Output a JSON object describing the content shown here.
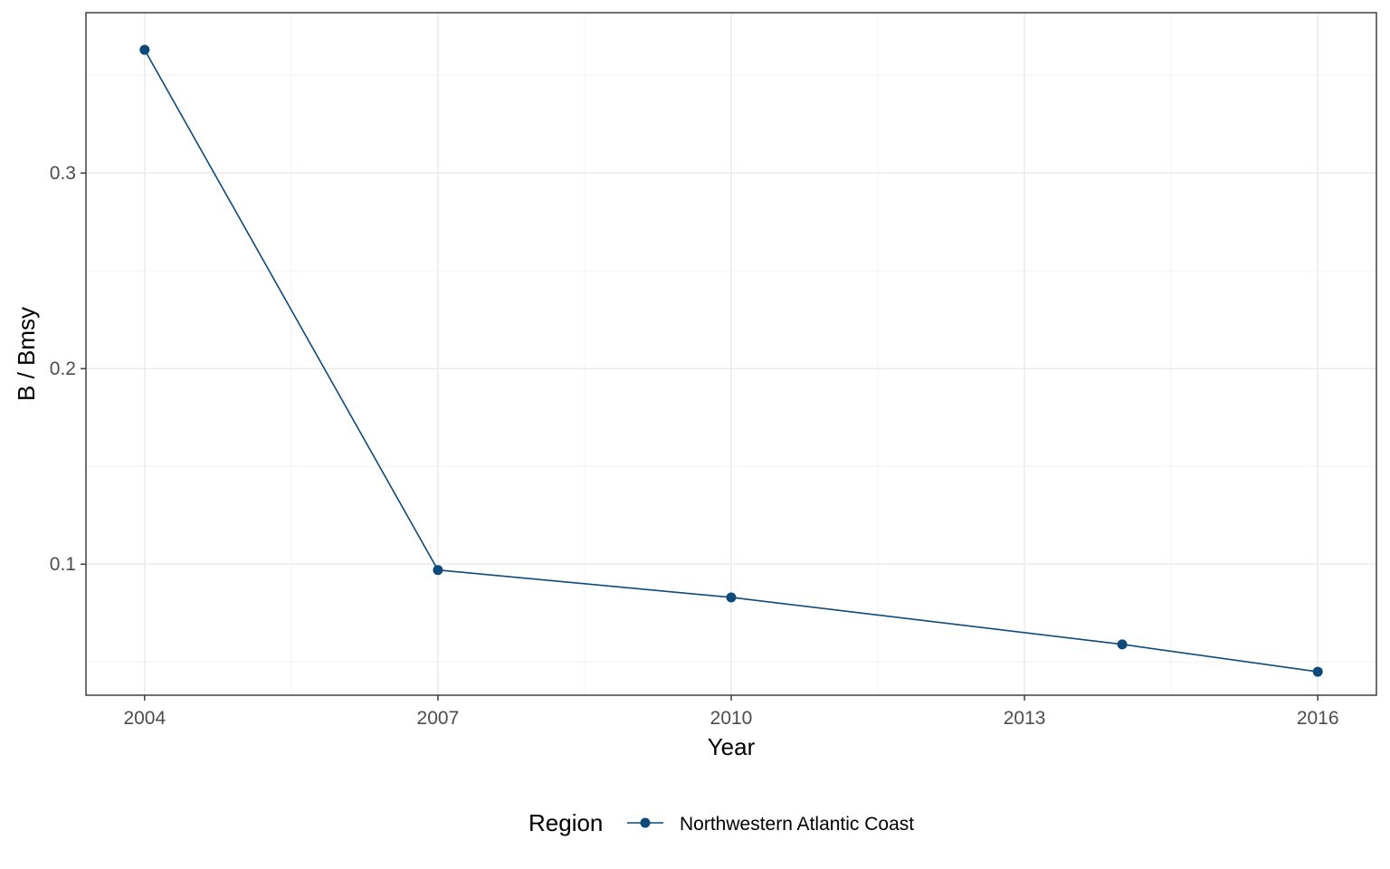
{
  "chart_data": {
    "type": "line",
    "title": "",
    "xlabel": "Year",
    "ylabel": "B / Bmsy",
    "xlim": [
      2003.4,
      2016.6
    ],
    "ylim": [
      0.033,
      0.382
    ],
    "x_ticks": [
      2004,
      2007,
      2010,
      2013,
      2016
    ],
    "x_tick_labels": [
      "2004",
      "2007",
      "2010",
      "2013",
      "2016"
    ],
    "y_ticks": [
      0.1,
      0.2,
      0.3
    ],
    "y_tick_labels": [
      "0.1",
      "0.2",
      "0.3"
    ],
    "grid": true,
    "legend": {
      "position": "bottom",
      "title": "Region",
      "entries": [
        "Northwestern Atlantic Coast"
      ]
    },
    "series": [
      {
        "name": "Northwestern Atlantic Coast",
        "color": "#0d4a7a",
        "x": [
          2004,
          2007,
          2010,
          2014,
          2016
        ],
        "y": [
          0.363,
          0.097,
          0.083,
          0.059,
          0.045
        ]
      }
    ]
  }
}
